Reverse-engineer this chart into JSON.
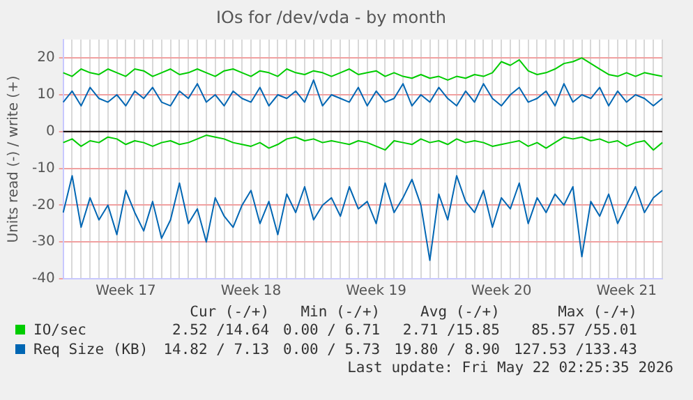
{
  "chart_data": {
    "type": "line",
    "title": "IOs for /dev/vda - by month",
    "ylabel": "Units read (-) / write (+)",
    "categories": [
      null,
      null,
      null,
      null,
      null,
      null,
      null,
      "Week 17",
      null,
      null,
      null,
      null,
      null,
      null,
      null,
      null,
      null,
      null,
      null,
      null,
      null,
      "Week 18",
      null,
      null,
      null,
      null,
      null,
      null,
      null,
      null,
      null,
      null,
      null,
      null,
      null,
      "Week 19",
      null,
      null,
      null,
      null,
      null,
      null,
      null,
      null,
      null,
      null,
      null,
      null,
      null,
      "Week 20",
      null,
      null,
      null,
      null,
      null,
      null,
      null,
      null,
      null,
      null,
      null,
      null,
      null,
      "Week 21",
      null,
      null,
      null,
      null
    ],
    "series": [
      {
        "name": "IO/sec",
        "color": "#00cc00",
        "values": [
          16,
          15,
          17,
          16,
          15.5,
          17,
          16,
          15,
          17,
          16.5,
          15,
          16,
          17,
          15.5,
          16,
          17,
          16,
          15,
          16.5,
          17,
          16,
          15,
          16.5,
          16,
          15,
          17,
          16,
          15.5,
          16.5,
          16,
          15,
          16,
          17,
          15.5,
          16,
          16.5,
          15,
          16,
          15,
          14.5,
          15.5,
          14.5,
          15,
          14,
          15,
          14.5,
          15.5,
          15,
          16,
          19,
          18,
          19.5,
          16.5,
          15.5,
          16,
          17,
          18.5,
          19,
          20,
          18.5,
          17,
          15.5,
          15,
          16,
          15,
          16,
          15.5,
          15
        ]
      },
      {
        "color": "#00cc00",
        "values": [
          -3,
          -2,
          -4,
          -2.5,
          -3,
          -1.5,
          -2,
          -3.5,
          -2.5,
          -3,
          -4,
          -3,
          -2.5,
          -3.5,
          -3,
          -2,
          -1,
          -1.5,
          -2,
          -3,
          -3.5,
          -4,
          -3,
          -4.5,
          -3.5,
          -2,
          -1.5,
          -2.5,
          -2,
          -3,
          -2.5,
          -3,
          -3.5,
          -2.5,
          -3,
          -4,
          -5,
          -2.5,
          -3,
          -3.5,
          -2,
          -3,
          -2.5,
          -3.5,
          -2,
          -3,
          -2.5,
          -3,
          -4,
          -3.5,
          -3,
          -2.5,
          -4,
          -3,
          -4.5,
          -3,
          -1.5,
          -2,
          -1.5,
          -2.5,
          -2,
          -3,
          -2.5,
          -4,
          -3,
          -2.5,
          -5,
          -3
        ]
      },
      {
        "name": "Req Size (KB)",
        "color": "#0066b3",
        "values": [
          8,
          11,
          7,
          12,
          9,
          8,
          10,
          7,
          11,
          9,
          12,
          8,
          7,
          11,
          9,
          13,
          8,
          10,
          7,
          11,
          9,
          8,
          12,
          7,
          10,
          9,
          11,
          8,
          14,
          7,
          10,
          9,
          8,
          12,
          7,
          11,
          8,
          9,
          13,
          7,
          10,
          8,
          12,
          9,
          7,
          11,
          8,
          13,
          9,
          7,
          10,
          12,
          8,
          9,
          11,
          7,
          13,
          8,
          10,
          9,
          12,
          7,
          11,
          8,
          10,
          9,
          7,
          9
        ]
      },
      {
        "color": "#0066b3",
        "values": [
          -22,
          -12,
          -26,
          -18,
          -24,
          -20,
          -28,
          -16,
          -22,
          -27,
          -19,
          -29,
          -24,
          -14,
          -25,
          -21,
          -30,
          -18,
          -23,
          -26,
          -20,
          -16,
          -25,
          -19,
          -28,
          -17,
          -22,
          -15,
          -24,
          -20,
          -18,
          -23,
          -15,
          -21,
          -19,
          -25,
          -14,
          -22,
          -18,
          -13,
          -20,
          -35,
          -17,
          -24,
          -12,
          -19,
          -22,
          -16,
          -26,
          -18,
          -21,
          -14,
          -25,
          -18,
          -22,
          -17,
          -20,
          -15,
          -34,
          -19,
          -23,
          -17,
          -25,
          -20,
          -15,
          -22,
          -18,
          -16
        ]
      }
    ],
    "ylim": [
      -40,
      25
    ],
    "yticks": [
      -40,
      -30,
      -20,
      -10,
      0,
      10,
      20
    ],
    "ref_lines": [
      {
        "axis": "y",
        "value": 0,
        "color": "#000000"
      }
    ],
    "grid": true,
    "legend": "bottom",
    "marker": "none",
    "line_style": "solid",
    "annotations": [
      "Cur (-/+)",
      "Min (-/+)",
      "Avg (-/+)",
      "Max (-/+)",
      "2.52 /14.64",
      "0.00 / 6.71",
      "2.71 /15.85",
      "85.57 /55.01",
      "14.82 / 7.13",
      "0.00 / 5.73",
      "19.80 / 8.90",
      "127.53 /133.43",
      "Last update: Fri May 22 02:25:35 2026"
    ]
  }
}
